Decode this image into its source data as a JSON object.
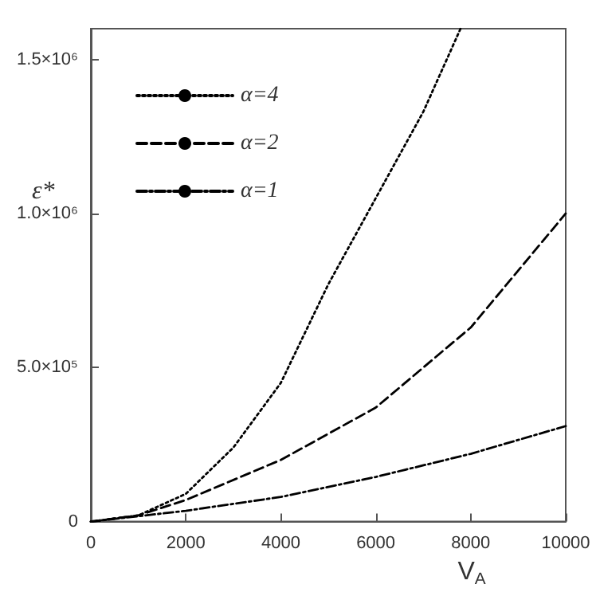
{
  "chart_data": {
    "type": "line",
    "xlabel": "V$_{A}$",
    "ylabel": "ε*",
    "xlim": [
      0,
      10000
    ],
    "xticks": [
      0,
      2000,
      4000,
      6000,
      8000,
      10000
    ],
    "ylim": [
      0,
      1600000
    ],
    "yticks": [
      {
        "value": 0,
        "label": "0"
      },
      {
        "value": 500000,
        "label": "5.0×10⁵"
      },
      {
        "value": 1000000,
        "label": "1.0×10⁶"
      },
      {
        "value": 1500000,
        "label": "1.5×10⁶"
      }
    ],
    "legend": "top left",
    "grid": false,
    "marker": "none",
    "series": [
      {
        "name": "α=4",
        "color": "#000000",
        "line_style": "dotted",
        "x": [
          0,
          1000,
          2000,
          3000,
          4000,
          5000,
          6000,
          7000,
          7785
        ],
        "values": [
          0,
          20000,
          90000,
          240000,
          450000,
          770000,
          1050000,
          1330000,
          1600000
        ]
      },
      {
        "name": "α=2",
        "color": "#000000",
        "line_style": "dashed",
        "x": [
          0,
          1000,
          2000,
          4000,
          6000,
          8000,
          10000
        ],
        "values": [
          0,
          20000,
          70000,
          200000,
          370000,
          630000,
          1000000
        ]
      },
      {
        "name": "α=1",
        "color": "#000000",
        "line_style": "dashdot",
        "x": [
          0,
          2000,
          4000,
          6000,
          8000,
          10000
        ],
        "values": [
          0,
          35000,
          80000,
          145000,
          220000,
          310000
        ]
      }
    ]
  }
}
